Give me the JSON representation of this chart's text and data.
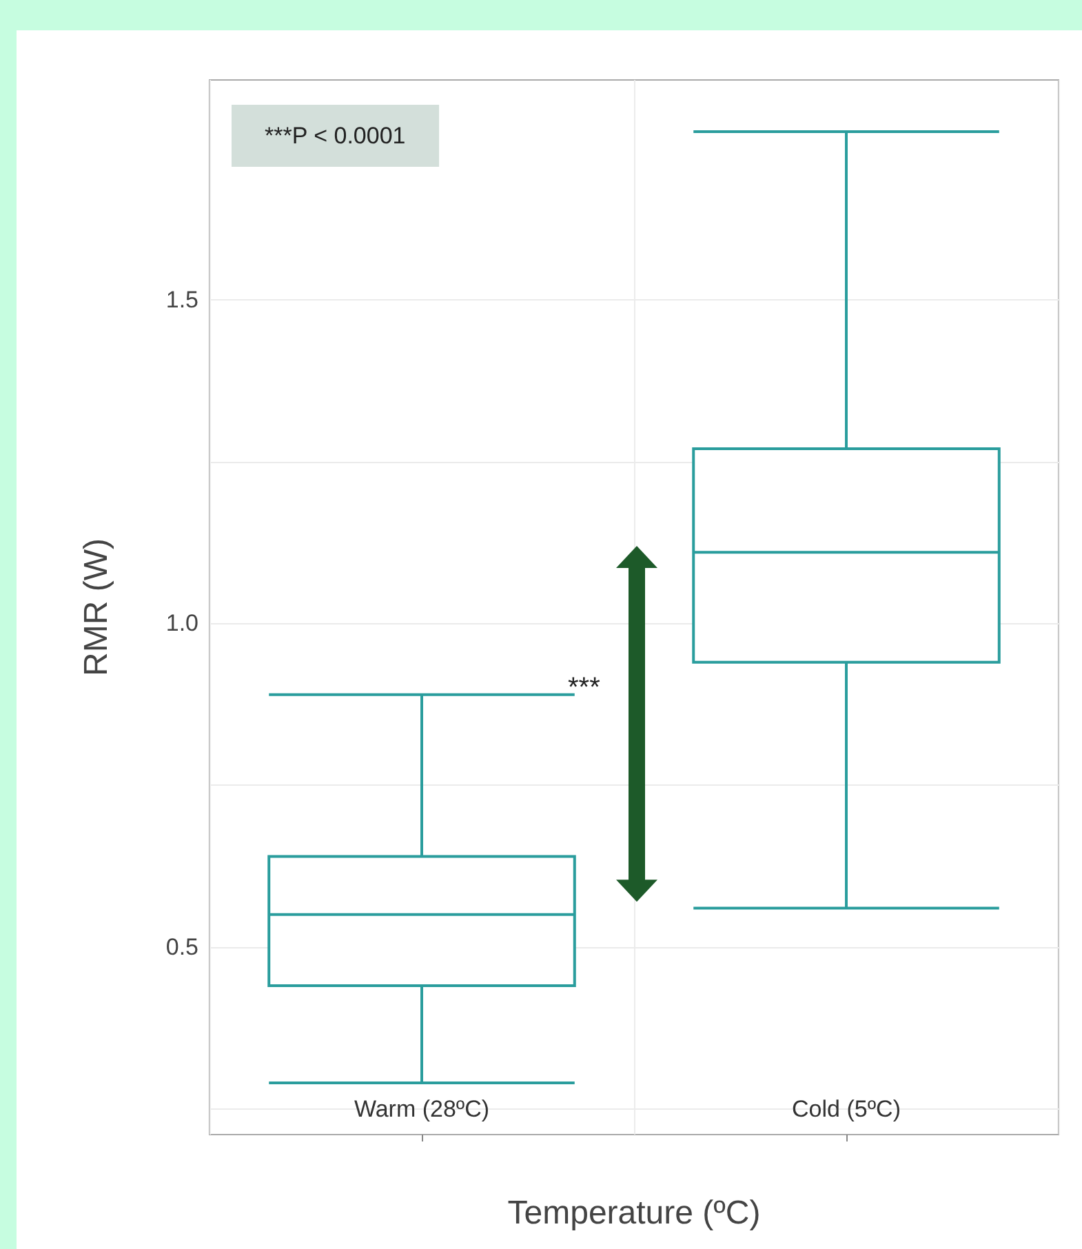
{
  "chart_data": {
    "type": "box",
    "xlabel": "Temperature (ºC)",
    "ylabel": "RMR (W)",
    "categories": [
      "Warm (28ºC)",
      "Cold (5ºC)"
    ],
    "series": [
      {
        "color": "#2a9d9d",
        "boxes": [
          {
            "low": 0.29,
            "q1": 0.44,
            "median": 0.55,
            "q3": 0.64,
            "high": 0.89
          },
          {
            "low": 0.56,
            "q1": 0.94,
            "median": 1.11,
            "q3": 1.27,
            "high": 1.76
          }
        ]
      }
    ],
    "ylim": [
      0.21,
      1.84
    ],
    "yticks": [
      {
        "value": 0.25,
        "label": null
      },
      0.5,
      {
        "value": 0.75,
        "label": null
      },
      {
        "value": 1,
        "label": "1.0"
      },
      {
        "value": 1.25,
        "label": null
      },
      1.5
    ],
    "grid": true,
    "annotations": [
      "***P < 0.0001",
      "***"
    ]
  }
}
